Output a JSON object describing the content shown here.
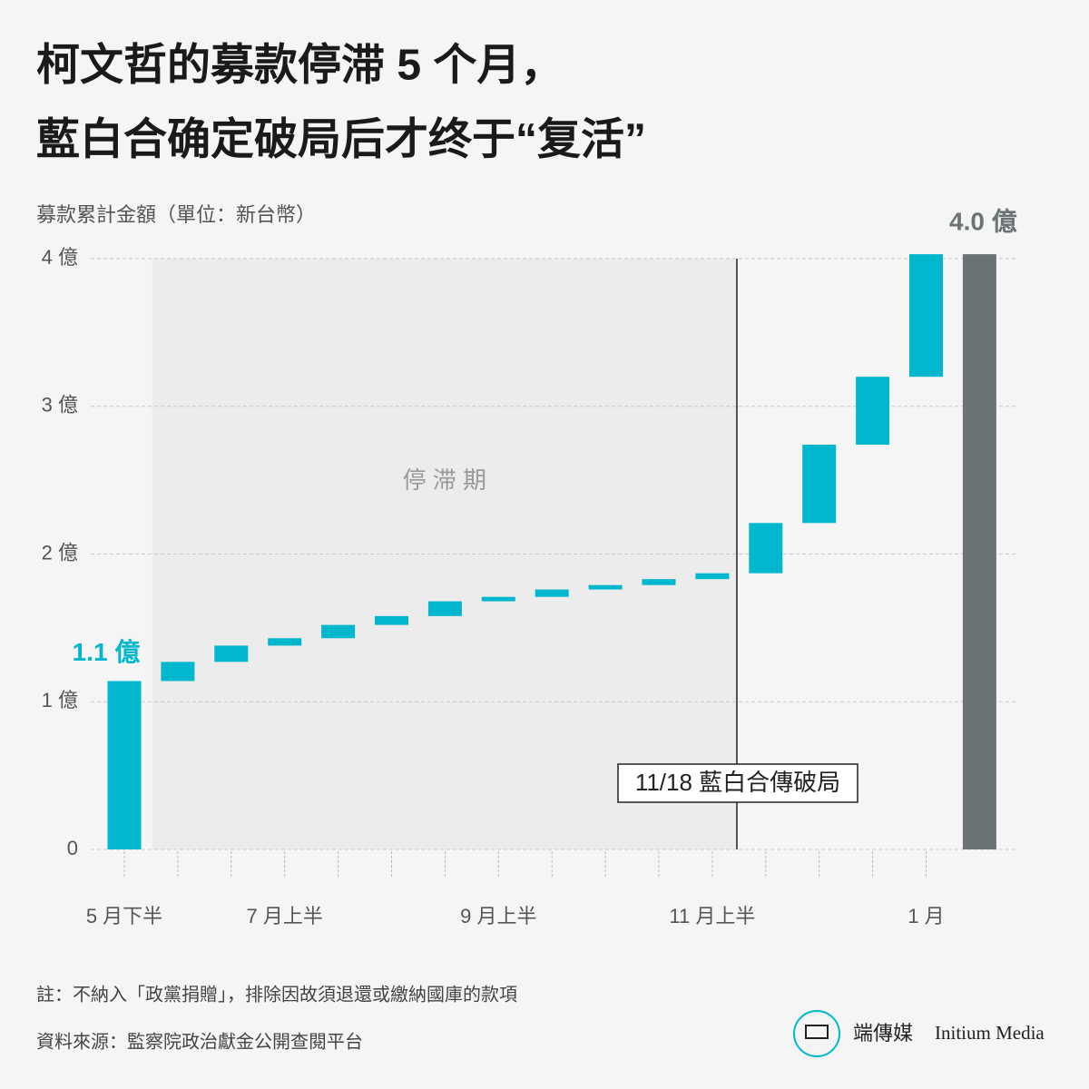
{
  "chart_data": {
    "type": "waterfall",
    "title": [
      "柯文哲的募款停滞 5 个月，",
      "藍白合确定破局后才终于“复活”"
    ],
    "subtitle": "募款累計金額（單位：新台幣）",
    "categories": [
      "5 月下半",
      null,
      null,
      "7 月上半",
      null,
      null,
      null,
      "9 月上半",
      null,
      null,
      null,
      "11 月上半",
      null,
      null,
      null,
      "1 月"
    ],
    "values": [
      1.14,
      0.13,
      0.11,
      0.05,
      0.09,
      0.06,
      0.1,
      0.03,
      0.05,
      0.03,
      0.04,
      0.04,
      0.34,
      0.53,
      0.46,
      0.83
    ],
    "value_labels": [
      "1.1 億",
      null,
      null,
      null,
      null,
      null,
      null,
      null,
      null,
      null,
      null,
      null,
      null,
      null,
      null,
      null
    ],
    "color": "#00b7cd",
    "total": {
      "value": 4.03,
      "value_label": "4.0 億",
      "color": "#6c7375"
    },
    "ylim": [
      0,
      4
    ],
    "yticks": [
      0,
      {
        "value": 1,
        "label": "1 億"
      },
      {
        "value": 2,
        "label": "2 億"
      },
      {
        "value": 3,
        "label": "3 億"
      },
      {
        "value": 4,
        "label": "4 億"
      }
    ],
    "grid": true,
    "shade_label": "停 滞 期",
    "event_label": "11/18 藍白合傳破局",
    "notes": [
      "註：不納入「政黨捐贈」，排除因故須退還或繳納國庫的款項",
      "資料來源：監察院政治獻金公開查閱平台"
    ],
    "brand": {
      "zh": "端傳媒",
      "en": "Initium Media"
    }
  }
}
